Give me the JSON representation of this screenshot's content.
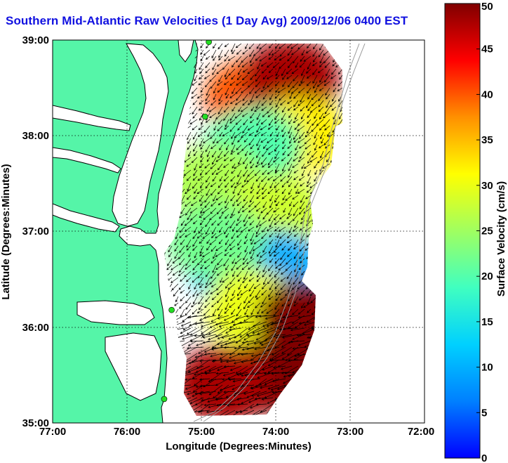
{
  "title": "Southern Mid-Atlantic Raw Velocities (1 Day Avg) 2009/12/06 0400 EST",
  "x_axis": {
    "label": "Longitude (Degrees:Minutes)",
    "ticks": [
      "77:00",
      "76:00",
      "75:00",
      "74:00",
      "73:00",
      "72:00"
    ]
  },
  "y_axis": {
    "label": "Latitude (Degrees:Minutes)",
    "ticks": [
      "39:00",
      "38:00",
      "37:00",
      "36:00",
      "35:00"
    ]
  },
  "colorbar": {
    "label": "Surface Velocity (cm/s)",
    "ticks": [
      "0",
      "5",
      "10",
      "15",
      "20",
      "25",
      "30",
      "35",
      "40",
      "45",
      "50"
    ],
    "min": 0,
    "max": 50,
    "colormap": "jet"
  },
  "colors": {
    "title": "#1010e0",
    "land": "#55f5a8",
    "ocean": "#ffffff",
    "coastline": "#000000",
    "station_marker": "#22dd22"
  },
  "chart_data": {
    "type": "heatmap",
    "xlabel": "Longitude (Degrees:Minutes)",
    "ylabel": "Latitude (Degrees:Minutes)",
    "xlim": [
      -77,
      -72
    ],
    "ylim": [
      35,
      39
    ],
    "grid": true,
    "grid_style": "dotted",
    "colorbar_range": [
      0,
      50
    ],
    "regions": [
      {
        "lon": -74.3,
        "lat": 38.4,
        "speed": 40
      },
      {
        "lon": -73.8,
        "lat": 38.6,
        "speed": 48
      },
      {
        "lon": -73.7,
        "lat": 38.0,
        "speed": 32
      },
      {
        "lon": -74.3,
        "lat": 37.9,
        "speed": 20
      },
      {
        "lon": -74.8,
        "lat": 37.5,
        "speed": 26
      },
      {
        "lon": -74.0,
        "lat": 37.2,
        "speed": 28
      },
      {
        "lon": -74.5,
        "lat": 36.6,
        "speed": 12
      },
      {
        "lon": -74.0,
        "lat": 36.6,
        "speed": 10
      },
      {
        "lon": -74.8,
        "lat": 36.9,
        "speed": 22
      },
      {
        "lon": -74.3,
        "lat": 36.2,
        "speed": 30
      },
      {
        "lon": -73.6,
        "lat": 36.1,
        "speed": 50
      },
      {
        "lon": -74.0,
        "lat": 35.5,
        "speed": 50
      },
      {
        "lon": -74.7,
        "lat": 35.4,
        "speed": 48
      }
    ],
    "stations": [
      {
        "lon": -74.9,
        "lat": 38.98
      },
      {
        "lon": -74.95,
        "lat": 38.2
      },
      {
        "lon": -75.4,
        "lat": 36.18
      },
      {
        "lon": -75.5,
        "lat": 35.25
      }
    ]
  }
}
